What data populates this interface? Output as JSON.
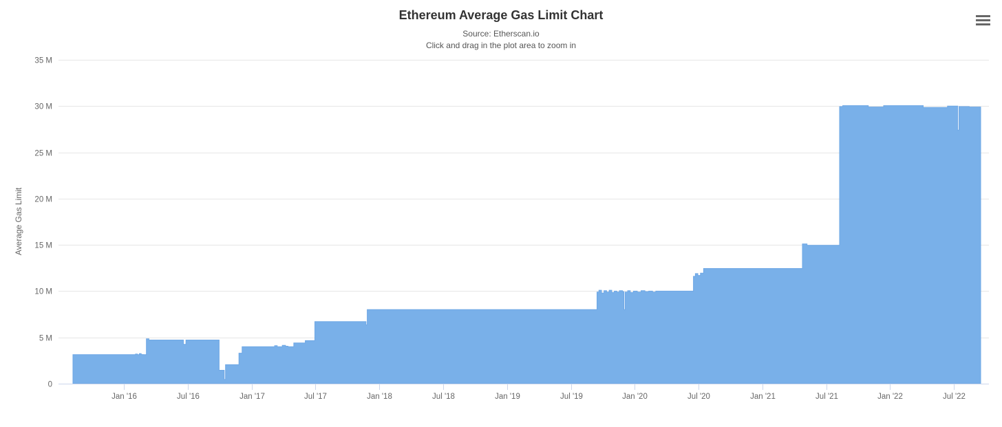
{
  "header": {
    "title": "Ethereum Average Gas Limit Chart",
    "subtitle_line1": "Source: Etherscan.io",
    "subtitle_line2": "Click and drag in the plot area to zoom in"
  },
  "icons": {
    "context_menu": "hamburger-menu-icon"
  },
  "colors": {
    "area_fill": "#79b0e9",
    "area_line": "#6ea7e5",
    "gridline": "#e6e6e6",
    "axis_line": "#ccd6eb",
    "label_text": "#666666",
    "title_text": "#333333"
  },
  "chart_data": {
    "type": "area",
    "title": "Ethereum Average Gas Limit Chart",
    "subtitle": [
      "Source: Etherscan.io",
      "Click and drag in the plot area to zoom in"
    ],
    "xlabel": "",
    "ylabel": "Average Gas Limit",
    "x_unit": "decimal_year",
    "x_range": [
      2015.6,
      2022.71
    ],
    "ylim": [
      0,
      35
    ],
    "y_unit": "million gas",
    "grid": true,
    "legend": "none",
    "interpolation": "step-after",
    "yticks": [
      {
        "v": 0,
        "label": "0"
      },
      {
        "v": 5,
        "label": "5 M"
      },
      {
        "v": 10,
        "label": "10 M"
      },
      {
        "v": 15,
        "label": "15 M"
      },
      {
        "v": 20,
        "label": "20 M"
      },
      {
        "v": 25,
        "label": "25 M"
      },
      {
        "v": 30,
        "label": "30 M"
      },
      {
        "v": 35,
        "label": "35 M"
      }
    ],
    "xticks": [
      {
        "v": 2016.0,
        "label": "Jan '16"
      },
      {
        "v": 2016.5,
        "label": "Jul '16"
      },
      {
        "v": 2017.0,
        "label": "Jan '17"
      },
      {
        "v": 2017.5,
        "label": "Jul '17"
      },
      {
        "v": 2018.0,
        "label": "Jan '18"
      },
      {
        "v": 2018.5,
        "label": "Jul '18"
      },
      {
        "v": 2019.0,
        "label": "Jan '19"
      },
      {
        "v": 2019.5,
        "label": "Jul '19"
      },
      {
        "v": 2020.0,
        "label": "Jan '20"
      },
      {
        "v": 2020.5,
        "label": "Jul '20"
      },
      {
        "v": 2021.0,
        "label": "Jan '21"
      },
      {
        "v": 2021.5,
        "label": "Jul '21"
      },
      {
        "v": 2022.0,
        "label": "Jan '22"
      },
      {
        "v": 2022.5,
        "label": "Jul '22"
      }
    ],
    "series": [
      {
        "name": "Average Gas Limit",
        "color": "#79b0e9",
        "points": [
          [
            2015.6,
            3.14
          ],
          [
            2016.09,
            3.2
          ],
          [
            2016.105,
            3.14
          ],
          [
            2016.12,
            3.25
          ],
          [
            2016.135,
            3.15
          ],
          [
            2016.15,
            3.14
          ],
          [
            2016.175,
            4.85
          ],
          [
            2016.195,
            4.72
          ],
          [
            2016.465,
            4.25
          ],
          [
            2016.485,
            4.72
          ],
          [
            2016.745,
            1.45
          ],
          [
            2016.785,
            0.45
          ],
          [
            2016.795,
            2.05
          ],
          [
            2016.9,
            3.3
          ],
          [
            2016.925,
            4.0
          ],
          [
            2017.18,
            4.1
          ],
          [
            2017.2,
            4.0
          ],
          [
            2017.24,
            4.15
          ],
          [
            2017.265,
            4.05
          ],
          [
            2017.285,
            4.0
          ],
          [
            2017.33,
            4.4
          ],
          [
            2017.42,
            4.65
          ],
          [
            2017.495,
            6.7
          ],
          [
            2017.895,
            6.35
          ],
          [
            2017.905,
            8.0
          ],
          [
            2019.705,
            9.9
          ],
          [
            2019.72,
            10.1
          ],
          [
            2019.74,
            9.8
          ],
          [
            2019.76,
            10.05
          ],
          [
            2019.78,
            9.9
          ],
          [
            2019.8,
            10.1
          ],
          [
            2019.82,
            9.85
          ],
          [
            2019.84,
            10.0
          ],
          [
            2019.86,
            9.9
          ],
          [
            2019.88,
            10.05
          ],
          [
            2019.905,
            9.95
          ],
          [
            2019.915,
            8.0
          ],
          [
            2019.925,
            9.9
          ],
          [
            2019.945,
            10.05
          ],
          [
            2019.965,
            9.85
          ],
          [
            2019.99,
            10.0
          ],
          [
            2020.02,
            9.9
          ],
          [
            2020.05,
            10.05
          ],
          [
            2020.08,
            9.95
          ],
          [
            2020.11,
            10.0
          ],
          [
            2020.14,
            9.9
          ],
          [
            2020.165,
            10.0
          ],
          [
            2020.46,
            11.6
          ],
          [
            2020.475,
            11.9
          ],
          [
            2020.495,
            11.7
          ],
          [
            2020.515,
            11.95
          ],
          [
            2020.54,
            12.45
          ],
          [
            2021.314,
            15.1
          ],
          [
            2021.35,
            14.95
          ],
          [
            2021.605,
            29.95
          ],
          [
            2021.63,
            30.05
          ],
          [
            2021.83,
            29.9
          ],
          [
            2021.95,
            30.05
          ],
          [
            2022.26,
            29.85
          ],
          [
            2022.45,
            30.0
          ],
          [
            2022.53,
            27.4
          ],
          [
            2022.54,
            29.95
          ],
          [
            2022.62,
            29.9
          ],
          [
            2022.71,
            29.9
          ]
        ]
      }
    ]
  }
}
